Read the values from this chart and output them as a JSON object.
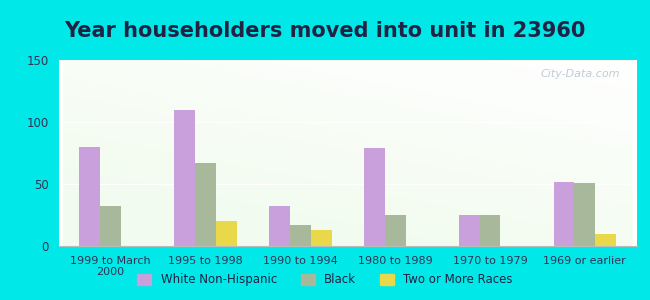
{
  "title": "Year householders moved into unit in 23960",
  "categories": [
    "1999 to March\n2000",
    "1995 to 1998",
    "1990 to 1994",
    "1980 to 1989",
    "1970 to 1979",
    "1969 or earlier"
  ],
  "white_values": [
    80,
    110,
    32,
    79,
    25,
    52
  ],
  "black_values": [
    32,
    67,
    17,
    25,
    25,
    51
  ],
  "two_or_more_values": [
    0,
    20,
    13,
    0,
    0,
    10
  ],
  "white_color": "#c9a0dc",
  "black_color": "#a8b89a",
  "two_or_more_color": "#e8d84a",
  "ylim": [
    0,
    150
  ],
  "yticks": [
    0,
    50,
    100,
    150
  ],
  "bg_outer": "#00e8e8",
  "title_fontsize": 15,
  "title_color": "#222244",
  "watermark": "City-Data.com",
  "legend_labels": [
    "White Non-Hispanic",
    "Black",
    "Two or More Races"
  ],
  "tick_color": "#333355",
  "bar_width": 0.22
}
